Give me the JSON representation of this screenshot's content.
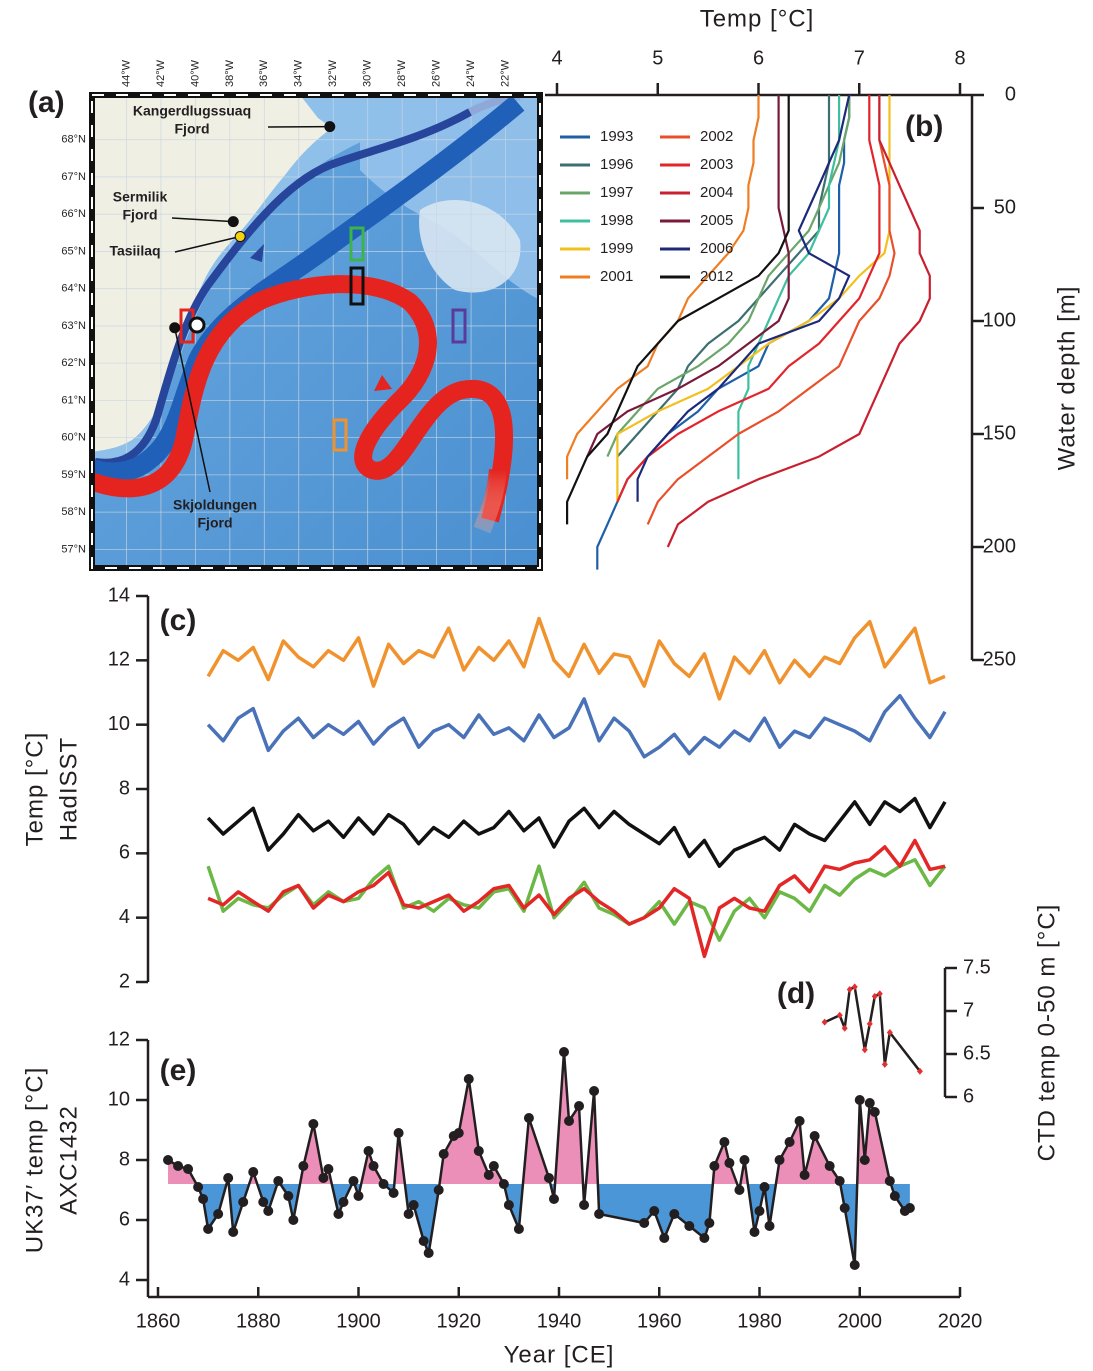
{
  "chart_data": [
    {
      "type": "map",
      "panel_label": "(a)",
      "xlim": [
        -46,
        -20
      ],
      "ylim": [
        56.5,
        69.2
      ],
      "xticks": [
        {
          "value": -44,
          "label": "44°W"
        },
        {
          "value": -42,
          "label": "42°W"
        },
        {
          "value": -40,
          "label": "40°W"
        },
        {
          "value": -38,
          "label": "38°W"
        },
        {
          "value": -36,
          "label": "36°W"
        },
        {
          "value": -34,
          "label": "34°W"
        },
        {
          "value": -32,
          "label": "32°W"
        },
        {
          "value": -30,
          "label": "30°W"
        },
        {
          "value": -28,
          "label": "28°W"
        },
        {
          "value": -26,
          "label": "26°W"
        },
        {
          "value": -24,
          "label": "24°W"
        },
        {
          "value": -22,
          "label": "22°W"
        }
      ],
      "yticks": [
        {
          "value": 57,
          "label": "57°N"
        },
        {
          "value": 58,
          "label": "58°N"
        },
        {
          "value": 59,
          "label": "59°N"
        },
        {
          "value": 60,
          "label": "60°N"
        },
        {
          "value": 61,
          "label": "61°N"
        },
        {
          "value": 62,
          "label": "62°N"
        },
        {
          "value": 63,
          "label": "63°N"
        },
        {
          "value": 64,
          "label": "64°N"
        },
        {
          "value": 65,
          "label": "65°N"
        },
        {
          "value": 66,
          "label": "66°N"
        },
        {
          "value": 67,
          "label": "67°N"
        },
        {
          "value": 68,
          "label": "68°N"
        }
      ],
      "places": [
        {
          "name": [
            "Kangerdlugssuaq",
            "Fjord"
          ],
          "lon": -32.2,
          "lat": 68.35,
          "color": "#111111"
        },
        {
          "name": [
            "Sermilik",
            "Fjord"
          ],
          "lon": -37.8,
          "lat": 65.8,
          "color": "#111111"
        },
        {
          "name": [
            "Tasiilaq"
          ],
          "lon": -37.4,
          "lat": 65.4,
          "color": "#f5d312"
        },
        {
          "name": [
            "Skjoldungen",
            "Fjord"
          ],
          "lon": -41.2,
          "lat": 62.95,
          "color": "#111111"
        }
      ]
    },
    {
      "type": "profile",
      "panel_label": "(b)",
      "xlabel": "Temp [°C]",
      "ylabel": "Water depth [m]",
      "xlim": [
        4,
        8
      ],
      "xticks": [
        4,
        5,
        6,
        7,
        8
      ],
      "ylim": [
        250,
        0
      ],
      "yticks": [
        0,
        50,
        100,
        150,
        200,
        250
      ],
      "y": [
        0,
        10,
        20,
        30,
        40,
        50,
        60,
        70,
        80,
        90,
        100,
        110,
        120,
        130,
        140,
        150,
        160,
        170,
        180,
        190,
        200,
        210
      ],
      "series": [
        {
          "name": "1993",
          "color": "#1f5fa8",
          "values": [
            6.9,
            6.9,
            6.85,
            6.85,
            6.8,
            6.8,
            6.8,
            6.8,
            6.75,
            6.7,
            6.5,
            6.1,
            6.0,
            5.6,
            5.4,
            5.1,
            4.9,
            4.7,
            4.6,
            4.5,
            4.4,
            4.4
          ]
        },
        {
          "name": "1996",
          "color": "#3d6e72",
          "values": [
            6.7,
            6.7,
            6.7,
            6.7,
            6.65,
            6.6,
            6.6,
            6.4,
            6.2,
            6.0,
            5.8,
            5.5,
            5.3,
            5.2,
            5.0,
            4.8,
            4.6,
            null,
            null,
            null,
            null,
            null
          ]
        },
        {
          "name": "1997",
          "color": "#6aa56a",
          "values": [
            6.9,
            6.9,
            6.85,
            6.8,
            6.7,
            6.6,
            6.5,
            6.3,
            6.1,
            6.0,
            5.9,
            5.7,
            5.4,
            5.0,
            4.8,
            4.6,
            4.5,
            null,
            null,
            null,
            null,
            null
          ]
        },
        {
          "name": "1998",
          "color": "#3dbfa0",
          "values": [
            6.8,
            6.8,
            6.8,
            6.75,
            6.7,
            6.7,
            6.6,
            6.5,
            6.3,
            6.2,
            6.1,
            6.0,
            5.9,
            5.9,
            5.8,
            5.8,
            5.8,
            5.8,
            null,
            null,
            null,
            null
          ]
        },
        {
          "name": "1999",
          "color": "#f2c01e",
          "values": [
            7.3,
            7.3,
            7.3,
            7.3,
            7.3,
            7.3,
            7.3,
            7.25,
            7.0,
            6.8,
            6.5,
            6.1,
            5.8,
            5.5,
            5.0,
            4.6,
            4.6,
            4.6,
            4.6,
            null,
            null,
            null
          ]
        },
        {
          "name": "2001",
          "color": "#ef7d22",
          "values": [
            6.0,
            6.0,
            5.95,
            5.95,
            5.9,
            5.9,
            5.85,
            5.7,
            5.5,
            5.3,
            5.2,
            5.0,
            4.9,
            4.6,
            4.4,
            4.2,
            4.1,
            4.1,
            null,
            null,
            null,
            null
          ]
        },
        {
          "name": "2002",
          "color": "#e8502a",
          "values": [
            7.2,
            7.2,
            7.2,
            7.25,
            7.3,
            7.3,
            7.3,
            7.35,
            7.3,
            7.2,
            7.0,
            6.9,
            6.8,
            6.5,
            6.2,
            5.8,
            5.5,
            5.2,
            5.0,
            4.9,
            null,
            null
          ]
        },
        {
          "name": "2003",
          "color": "#e3242b",
          "values": [
            7.1,
            7.1,
            7.1,
            7.15,
            7.2,
            7.2,
            7.2,
            7.2,
            7.1,
            7.0,
            6.8,
            6.6,
            6.3,
            6.1,
            5.6,
            5.2,
            4.9,
            4.7,
            4.6,
            null,
            null,
            null
          ]
        },
        {
          "name": "2004",
          "color": "#c8202f",
          "values": [
            7.2,
            7.2,
            7.2,
            7.3,
            7.4,
            7.5,
            7.6,
            7.6,
            7.7,
            7.7,
            7.6,
            7.4,
            7.3,
            7.2,
            7.1,
            7.0,
            6.6,
            6.0,
            5.5,
            5.2,
            5.1,
            null
          ]
        },
        {
          "name": "2005",
          "color": "#7a1a3a",
          "values": [
            6.2,
            6.2,
            6.2,
            6.2,
            6.2,
            6.2,
            6.25,
            6.3,
            6.3,
            6.3,
            6.2,
            5.9,
            5.6,
            5.2,
            4.7,
            4.4,
            4.3,
            null,
            null,
            null,
            null,
            null
          ]
        },
        {
          "name": "2006",
          "color": "#1d2a7a",
          "values": [
            6.9,
            6.85,
            6.8,
            6.7,
            6.6,
            6.5,
            6.4,
            6.5,
            6.9,
            6.8,
            6.6,
            6.0,
            5.8,
            5.6,
            5.3,
            5.1,
            4.9,
            4.8,
            4.8,
            null,
            null,
            null
          ]
        },
        {
          "name": "2012",
          "color": "#111111",
          "values": [
            6.3,
            6.3,
            6.3,
            6.3,
            6.3,
            6.3,
            6.3,
            6.2,
            6.0,
            5.6,
            5.2,
            5.0,
            4.8,
            4.7,
            4.6,
            4.5,
            4.3,
            4.2,
            4.1,
            4.1,
            null,
            null
          ]
        }
      ]
    },
    {
      "type": "line",
      "panel_label": "(c)",
      "ylabel": [
        "Temp [°C]",
        "HadISST"
      ],
      "xlim": [
        1860,
        2020
      ],
      "ylim": [
        2,
        14
      ],
      "yticks": [
        2,
        4,
        6,
        8,
        10,
        12,
        14
      ],
      "x": [
        1870,
        1873,
        1876,
        1879,
        1882,
        1885,
        1888,
        1891,
        1894,
        1897,
        1900,
        1903,
        1906,
        1909,
        1912,
        1915,
        1918,
        1921,
        1924,
        1927,
        1930,
        1933,
        1936,
        1939,
        1942,
        1945,
        1948,
        1951,
        1954,
        1957,
        1960,
        1963,
        1966,
        1969,
        1972,
        1975,
        1978,
        1981,
        1984,
        1987,
        1990,
        1993,
        1996,
        1999,
        2002,
        2005,
        2008,
        2011,
        2014,
        2017
      ],
      "series": [
        {
          "color": "#f0932f",
          "values": [
            11.5,
            12.3,
            12.0,
            12.4,
            11.4,
            12.6,
            12.1,
            11.8,
            12.3,
            12.0,
            12.7,
            11.2,
            12.5,
            11.9,
            12.3,
            12.1,
            13.0,
            11.7,
            12.4,
            12.0,
            12.6,
            11.8,
            13.3,
            12.0,
            11.5,
            12.5,
            11.6,
            12.2,
            12.1,
            11.2,
            12.6,
            11.9,
            11.5,
            12.2,
            10.8,
            12.1,
            11.6,
            12.3,
            11.3,
            12.0,
            11.5,
            12.1,
            11.9,
            12.7,
            13.2,
            11.8,
            12.4,
            13.0,
            11.3,
            11.5
          ]
        },
        {
          "color": "#4a72b8",
          "values": [
            10.0,
            9.5,
            10.2,
            10.5,
            9.2,
            9.8,
            10.2,
            9.6,
            10.0,
            9.7,
            10.1,
            9.4,
            9.9,
            10.2,
            9.3,
            9.8,
            10.0,
            9.6,
            10.3,
            9.7,
            9.9,
            9.5,
            10.3,
            9.6,
            9.9,
            10.8,
            9.5,
            10.2,
            9.8,
            9.0,
            9.3,
            9.7,
            9.1,
            9.6,
            9.3,
            9.8,
            9.5,
            10.2,
            9.3,
            9.8,
            9.6,
            10.2,
            10.0,
            9.8,
            9.5,
            10.4,
            10.9,
            10.2,
            9.6,
            10.4
          ]
        },
        {
          "color": "#111111",
          "values": [
            7.1,
            6.6,
            7.0,
            7.4,
            6.1,
            6.6,
            7.2,
            6.7,
            7.0,
            6.5,
            7.1,
            6.6,
            7.2,
            6.9,
            6.3,
            6.8,
            6.5,
            7.0,
            6.6,
            6.8,
            7.3,
            6.7,
            7.1,
            6.2,
            7.0,
            7.4,
            6.8,
            7.3,
            6.9,
            6.6,
            6.3,
            6.8,
            5.9,
            6.4,
            5.6,
            6.1,
            6.3,
            6.5,
            6.1,
            6.9,
            6.6,
            6.4,
            7.0,
            7.6,
            6.9,
            7.6,
            7.3,
            7.7,
            6.8,
            7.6
          ]
        },
        {
          "color": "#6bb846",
          "values": [
            5.6,
            4.2,
            4.6,
            4.4,
            4.3,
            4.7,
            5.0,
            4.4,
            4.8,
            4.5,
            4.6,
            5.2,
            5.6,
            4.3,
            4.5,
            4.2,
            4.6,
            4.4,
            4.3,
            4.8,
            4.9,
            4.2,
            5.6,
            4.0,
            4.5,
            5.1,
            4.3,
            4.1,
            3.8,
            4.0,
            4.5,
            3.8,
            4.5,
            4.3,
            3.3,
            4.2,
            4.6,
            4.0,
            4.8,
            4.6,
            4.2,
            5.0,
            4.7,
            5.2,
            5.5,
            5.3,
            5.6,
            5.8,
            5.0,
            5.6
          ]
        },
        {
          "color": "#e32626",
          "values": [
            4.6,
            4.4,
            4.8,
            4.5,
            4.2,
            4.8,
            5.0,
            4.3,
            4.7,
            4.5,
            4.8,
            5.0,
            5.4,
            4.4,
            4.3,
            4.5,
            4.7,
            4.2,
            4.5,
            4.9,
            5.0,
            4.3,
            4.7,
            4.1,
            4.6,
            4.9,
            4.5,
            4.2,
            3.8,
            4.0,
            4.3,
            4.9,
            4.6,
            2.8,
            4.3,
            4.6,
            4.3,
            4.2,
            5.0,
            5.3,
            4.8,
            5.6,
            5.5,
            5.7,
            5.8,
            6.2,
            5.6,
            6.4,
            5.5,
            5.6
          ]
        }
      ]
    },
    {
      "type": "line",
      "panel_label": "(d)",
      "ylabel": "CTD temp 0-50 m [°C]",
      "xlim": [
        1860,
        2020
      ],
      "ylim": [
        6,
        7.5
      ],
      "yticks": [
        6,
        6.5,
        7,
        7.5
      ],
      "x": [
        1993,
        1996,
        1997,
        1998,
        1999,
        2001,
        2002,
        2003,
        2004,
        2005,
        2006,
        2012
      ],
      "values": [
        6.87,
        6.95,
        6.8,
        7.25,
        7.28,
        6.55,
        6.85,
        7.17,
        7.2,
        6.38,
        6.75,
        6.3
      ],
      "color": "#231f20",
      "marker_color": "#e03030"
    },
    {
      "type": "line",
      "panel_label": "(e)",
      "ylabel": [
        "UK37′ temp [°C]",
        "AXC1432"
      ],
      "xlabel": "Year [CE]",
      "xlim": [
        1860,
        2020
      ],
      "xticks": [
        1860,
        1880,
        1900,
        1920,
        1940,
        1960,
        1980,
        2000,
        2020
      ],
      "ylim": [
        4,
        12
      ],
      "yticks": [
        4,
        6,
        8,
        10,
        12
      ],
      "x": [
        1862,
        1864,
        1866,
        1868,
        1869,
        1870,
        1872,
        1874,
        1875,
        1877,
        1879,
        1881,
        1882,
        1884,
        1886,
        1887,
        1889,
        1891,
        1893,
        1894,
        1896,
        1897,
        1899,
        1900,
        1902,
        1903,
        1905,
        1907,
        1908,
        1910,
        1911,
        1913,
        1914,
        1916,
        1917,
        1919,
        1920,
        1922,
        1924,
        1926,
        1927,
        1929,
        1930,
        1932,
        1934,
        1938,
        1939,
        1941,
        1942,
        1944,
        1945,
        1947,
        1948,
        1957,
        1959,
        1961,
        1963,
        1966,
        1969,
        1970,
        1971,
        1973,
        1974,
        1976,
        1977,
        1979,
        1980,
        1981,
        1982,
        1984,
        1986,
        1988,
        1989,
        1991,
        1994,
        1996,
        1997,
        1999,
        2000,
        2001,
        2002,
        2003,
        2006,
        2007,
        2009,
        2010
      ],
      "values": [
        8.0,
        7.8,
        7.7,
        7.1,
        6.7,
        5.7,
        6.2,
        7.4,
        5.6,
        6.6,
        7.6,
        6.6,
        6.3,
        7.3,
        6.8,
        6.0,
        7.8,
        9.2,
        7.4,
        7.7,
        6.2,
        6.6,
        7.3,
        6.8,
        8.3,
        7.8,
        7.2,
        6.9,
        8.9,
        6.2,
        6.5,
        5.3,
        4.9,
        7.0,
        8.2,
        8.8,
        8.9,
        10.7,
        8.3,
        7.5,
        7.8,
        7.2,
        6.5,
        5.7,
        9.4,
        7.4,
        6.7,
        11.6,
        9.3,
        9.8,
        6.5,
        10.3,
        6.2,
        5.9,
        6.3,
        5.4,
        6.2,
        5.8,
        5.4,
        5.9,
        7.8,
        8.6,
        7.9,
        7.0,
        8.0,
        5.6,
        6.3,
        7.1,
        5.8,
        8.0,
        8.6,
        9.3,
        7.5,
        8.8,
        7.8,
        7.3,
        6.4,
        4.5,
        10.0,
        8.0,
        9.9,
        9.6,
        7.3,
        6.8,
        6.3,
        6.4
      ],
      "baseline": 7.2,
      "color": "#231f20",
      "marker_color": "#231f20",
      "fill_above_color": "#ec8fb8",
      "fill_below_color": "#4a96d6"
    }
  ]
}
